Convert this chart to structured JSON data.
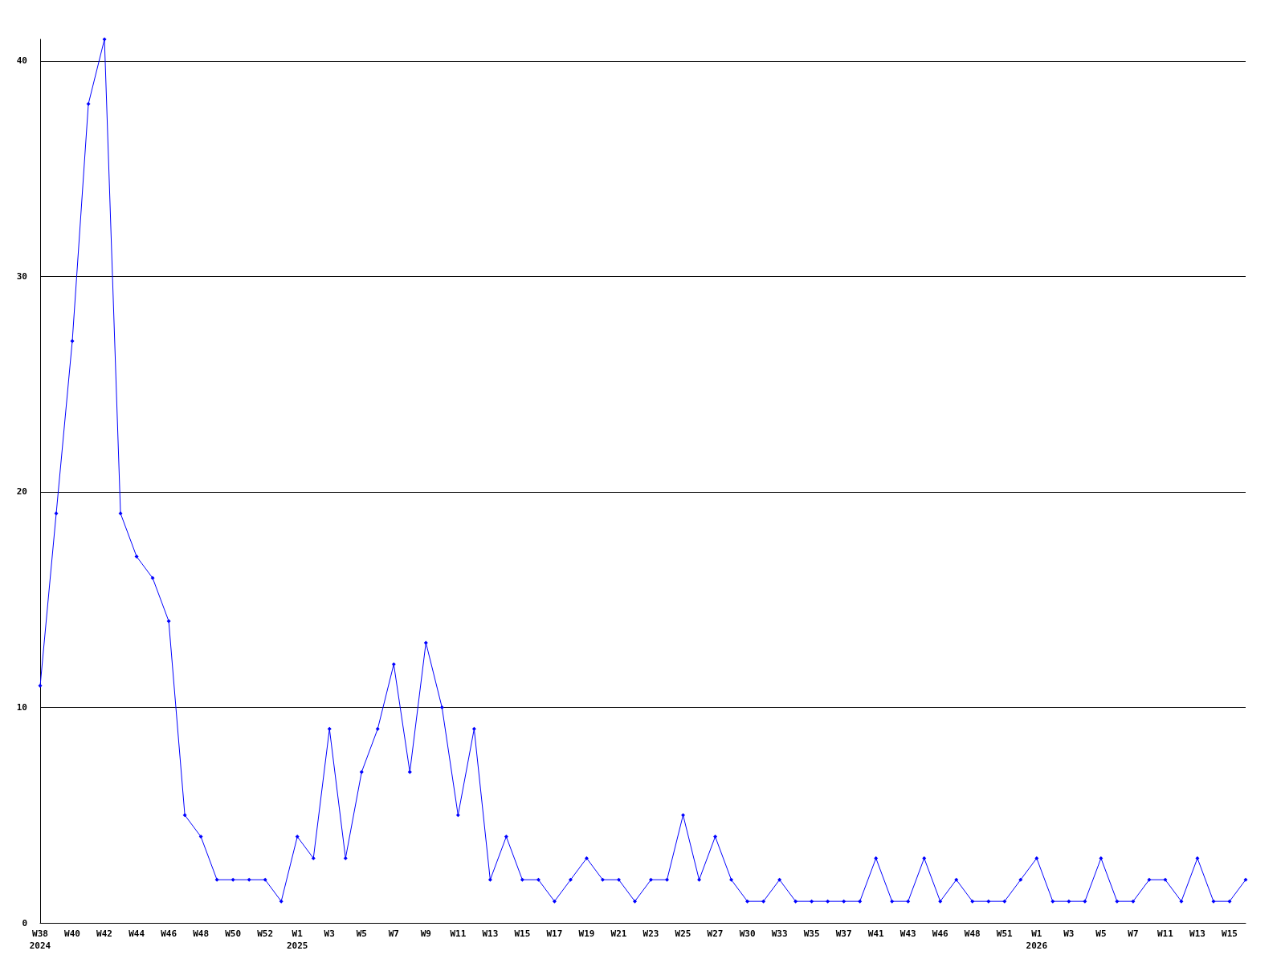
{
  "chart_data": {
    "type": "line",
    "categories": [
      "W38\n2024",
      null,
      "W40",
      null,
      "W42",
      null,
      "W44",
      null,
      "W46",
      null,
      "W48",
      null,
      "W50",
      null,
      "W52",
      null,
      "W1\n2025",
      null,
      "W3",
      null,
      "W5",
      null,
      "W7",
      null,
      "W9",
      null,
      "W11",
      null,
      "W13",
      null,
      "W15",
      null,
      "W17",
      null,
      "W19",
      null,
      "W21",
      null,
      "W23",
      null,
      "W25",
      null,
      "W27",
      null,
      "W30",
      null,
      "W33",
      null,
      "W35",
      null,
      "W37",
      null,
      "W41",
      null,
      "W43",
      null,
      "W46",
      null,
      "W48",
      null,
      "W51",
      null,
      "W1\n2026",
      null,
      "W3",
      null,
      "W5",
      null,
      "W7",
      null,
      "W11",
      null,
      "W13",
      null,
      "W15",
      null
    ],
    "series": [
      {
        "color": "#0000ff",
        "values": [
          11,
          19,
          27,
          38,
          41,
          19,
          17,
          16,
          14,
          5,
          4,
          2,
          2,
          2,
          2,
          1,
          4,
          3,
          9,
          3,
          7,
          9,
          12,
          7,
          13,
          10,
          5,
          9,
          2,
          4,
          2,
          2,
          1,
          2,
          3,
          2,
          2,
          1,
          2,
          2,
          5,
          2,
          4,
          2,
          1,
          1,
          2,
          1,
          1,
          1,
          1,
          1,
          3,
          1,
          1,
          3,
          1,
          2,
          1,
          1,
          1,
          2,
          3,
          1,
          1,
          1,
          3,
          1,
          1,
          2,
          2,
          1,
          3,
          1,
          1,
          2
        ]
      }
    ],
    "ylim": [
      0,
      41
    ],
    "yticks": [
      0,
      10,
      20,
      30,
      40
    ],
    "grid": "y",
    "marker": "diamond",
    "line_style": "solid"
  }
}
